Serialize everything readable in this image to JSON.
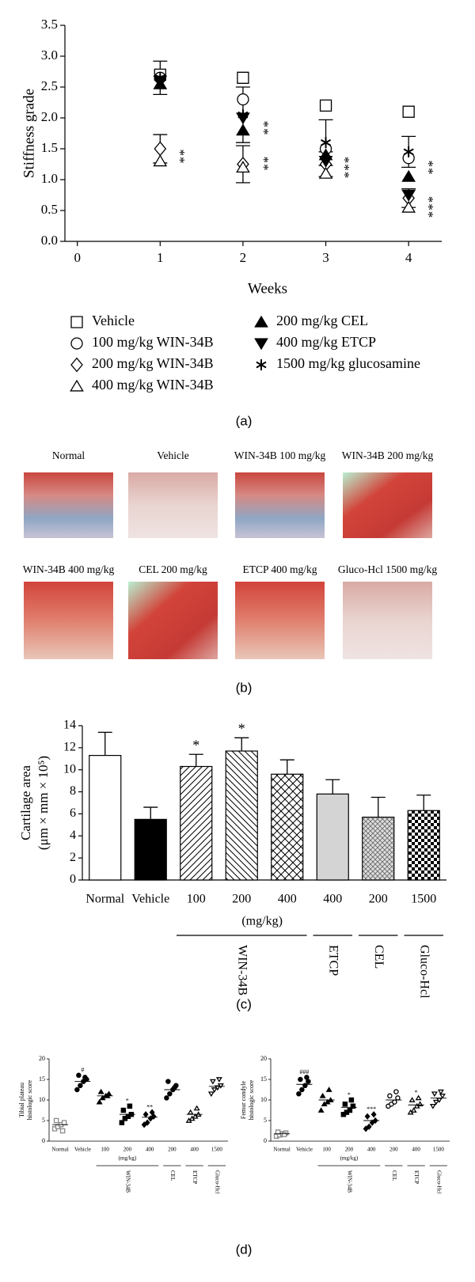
{
  "chart_data": [
    {
      "type": "scatter",
      "panel_label": "(a)",
      "y_label": "Stiffness grade",
      "x_label": "Weeks",
      "xlim": [
        -0.15,
        4.4
      ],
      "ylim": [
        0,
        3.5
      ],
      "xticks": [
        0,
        1,
        2,
        3,
        4
      ],
      "yticks": [
        {
          "value": 0,
          "label": "0.0"
        },
        0.5,
        {
          "value": 1,
          "label": "1.0"
        },
        1.5,
        {
          "value": 2,
          "label": "2.0"
        },
        2.5,
        {
          "value": 3,
          "label": "3.0"
        },
        3.5
      ],
      "x": [
        1,
        2,
        3,
        4
      ],
      "series": [
        {
          "name": "Vehicle",
          "marker": "square-open",
          "color": "#000",
          "values": [
            2.7,
            2.65,
            2.2,
            2.1
          ]
        },
        {
          "name": "100 mg/kg WIN-34B",
          "marker": "circle-open",
          "color": "#000",
          "values": [
            2.65,
            2.3,
            1.5,
            1.35
          ]
        },
        {
          "name": "200 mg/kg WIN-34B",
          "marker": "diamond-open",
          "color": "#000",
          "values": [
            1.5,
            1.25,
            1.25,
            0.7
          ],
          "errors": [
            0.23,
            0.3,
            0.2,
            0.15
          ]
        },
        {
          "name": "400 mg/kg WIN-34B",
          "marker": "triangle-open",
          "color": "#000",
          "values": [
            1.3,
            1.2,
            1.1,
            0.55
          ]
        },
        {
          "name": "200 mg/kg CEL",
          "marker": "triangle",
          "color": "#000",
          "values": [
            2.55,
            1.8,
            1.4,
            1.05
          ]
        },
        {
          "name": "400 mg/kg ETCP",
          "marker": "triangle-down",
          "color": "#000",
          "values": [
            2.6,
            2.0,
            1.3,
            0.75
          ]
        },
        {
          "name": "1500 mg/kg glucosamine",
          "marker": "asterisk",
          "color": "#000",
          "values": [
            2.65,
            2.05,
            1.6,
            1.45
          ],
          "errors": [
            0.27,
            0.45,
            0.37,
            0.25
          ]
        }
      ],
      "annotations": [
        "**",
        "**",
        "**",
        "***",
        "**",
        "***"
      ]
    },
    {
      "type": "bar",
      "panel_label": "(c)",
      "y_label": [
        "Cartilage area",
        "(μm × mm × 10⁵)"
      ],
      "x_label": "(mg/kg)",
      "ylim": [
        0,
        14
      ],
      "yticks": [
        0,
        2,
        4,
        6,
        8,
        10,
        12,
        14
      ],
      "categories": [
        "Normal",
        "Vehicle",
        "100",
        "200",
        "400",
        "400",
        "200",
        "1500"
      ],
      "values": [
        11.3,
        5.5,
        10.3,
        11.7,
        9.6,
        7.8,
        5.7,
        6.3
      ],
      "errors": [
        2.1,
        1.1,
        1.1,
        1.2,
        1.3,
        1.3,
        1.8,
        1.4
      ],
      "fills": [
        "white",
        "black",
        "hatch-right",
        "hatch-left",
        "crosshatch",
        "lightgray",
        "gray-crosshatch",
        "checker"
      ],
      "significance": [
        null,
        null,
        "*",
        "*",
        null,
        null,
        null,
        null
      ],
      "groups": [
        {
          "name": "WIN-34B",
          "from": 2,
          "to": 4
        },
        {
          "name": "ETCP",
          "from": 5,
          "to": 5
        },
        {
          "name": "CEL",
          "from": 6,
          "to": 6
        },
        {
          "name": "Gluco-Hcl",
          "from": 7,
          "to": 7
        }
      ]
    },
    {
      "type": "dot",
      "panel_label": "(d)",
      "y_label": [
        "Tibial plateau",
        "histologic score"
      ],
      "x_label": "(mg/kg)",
      "ylim": [
        0,
        20
      ],
      "yticks": [
        0,
        5,
        10,
        15,
        20
      ],
      "categories": [
        "Normal",
        "Vehicle",
        "100",
        "200",
        "400",
        "200",
        "400",
        "1500"
      ],
      "markers": [
        "square-open",
        "circle",
        "triangle",
        "square",
        "diamond",
        "circle",
        "triangle-open",
        "triangle-down-open"
      ],
      "colors": [
        "#888",
        "#000",
        "#000",
        "#000",
        "#000",
        "#000",
        "#000",
        "#000"
      ],
      "points": [
        [
          3,
          3.5,
          4,
          4.5,
          5,
          2.5
        ],
        [
          12.5,
          13.5,
          14.5,
          15,
          16,
          15.5
        ],
        [
          9.5,
          10.5,
          11,
          11.5,
          12,
          11
        ],
        [
          4.5,
          5.5,
          6,
          6.5,
          7.5,
          8.5
        ],
        [
          4,
          4.5,
          5.5,
          6,
          6.5,
          7
        ],
        [
          10.5,
          11.5,
          12.5,
          13.5,
          14.5,
          13
        ],
        [
          5,
          5.5,
          6,
          6.5,
          7,
          8
        ],
        [
          11.5,
          12.5,
          13,
          13.5,
          14.5,
          15
        ]
      ],
      "means": [
        4,
        14.5,
        11,
        6.5,
        5.8,
        12.5,
        6.5,
        13.3
      ],
      "significance": [
        null,
        "#",
        null,
        "*",
        "**",
        null,
        null,
        null
      ],
      "groups": [
        {
          "name": "WIN-34B",
          "from": 2,
          "to": 4
        },
        {
          "name": "CEL",
          "from": 5,
          "to": 5
        },
        {
          "name": "ETCP",
          "from": 6,
          "to": 6
        },
        {
          "name": "Gluco-Hcl",
          "from": 7,
          "to": 7
        }
      ]
    },
    {
      "type": "dot",
      "y_label": [
        "Femur condyle",
        "histologic score"
      ],
      "x_label": "(mg/kg)",
      "ylim": [
        0,
        20
      ],
      "yticks": [
        0,
        5,
        10,
        15,
        20
      ],
      "categories": [
        "Normal",
        "Vehicle",
        "100",
        "200",
        "400",
        "200",
        "400",
        "1500"
      ],
      "markers": [
        "square-open",
        "circle",
        "triangle",
        "square",
        "diamond",
        "circle-open",
        "triangle-open",
        "triangle-down-open"
      ],
      "colors": [
        "#888",
        "#000",
        "#000",
        "#000",
        "#000",
        "#000",
        "#000",
        "#000"
      ],
      "points": [
        [
          1.2,
          1.5,
          1.8,
          2,
          2.2,
          1.6
        ],
        [
          11.5,
          12.5,
          13.5,
          14.5,
          15,
          15.5
        ],
        [
          7.5,
          9,
          9.5,
          10,
          11,
          12.5
        ],
        [
          6.5,
          7,
          7.5,
          8.5,
          9,
          10
        ],
        [
          3,
          3.5,
          4.5,
          5,
          6,
          6.5
        ],
        [
          8.5,
          9,
          9.5,
          10.5,
          11,
          12
        ],
        [
          7,
          7.5,
          8.5,
          9,
          10,
          10.5
        ],
        [
          8.5,
          9.5,
          10,
          11,
          11.5,
          12
        ]
      ],
      "means": [
        1.8,
        13.8,
        10,
        8.2,
        5,
        10,
        8.8,
        10.5
      ],
      "significance": [
        null,
        "###",
        null,
        "*",
        "***",
        null,
        "*",
        null
      ],
      "groups": [
        {
          "name": "WIN-34B",
          "from": 2,
          "to": 4
        },
        {
          "name": "CEL",
          "from": 5,
          "to": 5
        },
        {
          "name": "ETCP",
          "from": 6,
          "to": 6
        },
        {
          "name": "Gluco-Hcl",
          "from": 7,
          "to": 7
        }
      ]
    }
  ],
  "images": {
    "panel_label": "(b)",
    "labels": [
      "Normal",
      "Vehicle",
      "WIN-34B 100 mg/kg",
      "WIN-34B 200 mg/kg",
      "WIN-34B 400 mg/kg",
      "CEL 200 mg/kg",
      "ETCP 400 mg/kg",
      "Gluco-Hcl 1500 mg/kg"
    ]
  }
}
